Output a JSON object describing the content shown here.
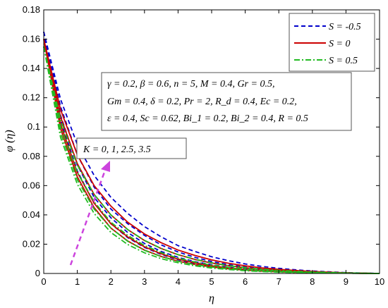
{
  "chart_data": {
    "type": "line",
    "xlabel": "η",
    "ylabel": "φ (η)",
    "xlim": [
      0,
      10
    ],
    "ylim": [
      0,
      0.18
    ],
    "xticks": [
      "0",
      "1",
      "2",
      "3",
      "4",
      "5",
      "6",
      "7",
      "8",
      "9",
      "10"
    ],
    "yticks": [
      "0",
      "0.02",
      "0.04",
      "0.06",
      "0.08",
      "0.1",
      "0.12",
      "0.14",
      "0.16",
      "0.18"
    ],
    "legend_position": "top-right",
    "legend": [
      {
        "label": "S = -0.5",
        "color": "#0000cc",
        "style": "dashed"
      },
      {
        "label": "S = 0",
        "color": "#cc0000",
        "style": "solid"
      },
      {
        "label": "S = 0.5",
        "color": "#22bb22",
        "style": "dashdot"
      }
    ],
    "parameters_text": [
      "γ = 0.2, β = 0.6, n = 5, M = 0.4, Gr = 0.5,",
      "Gm = 0.4, δ = 0.2, Pr = 2, R_d = 0.4, Ec = 0.2,",
      "ε = 0.4, Sc = 0.62, Bi_1 = 0.2, Bi_2 = 0.4, R = 0.5"
    ],
    "k_label": "K = 0, 1, 2.5, 3.5",
    "k_values": [
      0,
      1,
      2.5,
      3.5
    ],
    "x": [
      0,
      0.5,
      1,
      1.5,
      2,
      2.5,
      3,
      3.5,
      4,
      4.5,
      5,
      5.5,
      6,
      6.5,
      7,
      7.5,
      8,
      8.5,
      9,
      9.5,
      10
    ],
    "series": [
      {
        "style": "dashed",
        "color": "#0000cc",
        "k": 0,
        "values": [
          0.165,
          0.119,
          0.088,
          0.067,
          0.052,
          0.041,
          0.032,
          0.025,
          0.019,
          0.015,
          0.0114,
          0.0087,
          0.0065,
          0.0048,
          0.0035,
          0.0025,
          0.0017,
          0.0011,
          0.0006,
          0.0003,
          0.0
        ]
      },
      {
        "style": "dashed",
        "color": "#0000cc",
        "k": 1,
        "values": [
          0.165,
          0.114,
          0.081,
          0.059,
          0.044,
          0.034,
          0.026,
          0.0195,
          0.0147,
          0.011,
          0.0082,
          0.006,
          0.0044,
          0.0032,
          0.0023,
          0.0016,
          0.0011,
          0.0007,
          0.0004,
          0.0002,
          0.0
        ]
      },
      {
        "style": "dashed",
        "color": "#0000cc",
        "k": 2.5,
        "values": [
          0.165,
          0.108,
          0.074,
          0.052,
          0.038,
          0.028,
          0.0205,
          0.015,
          0.011,
          0.0081,
          0.0059,
          0.0043,
          0.0031,
          0.0022,
          0.0016,
          0.0011,
          0.0007,
          0.0005,
          0.0003,
          0.0001,
          0.0
        ]
      },
      {
        "style": "dashed",
        "color": "#0000cc",
        "k": 3.5,
        "values": [
          0.165,
          0.105,
          0.07,
          0.048,
          0.034,
          0.0245,
          0.0178,
          0.013,
          0.0094,
          0.0068,
          0.0049,
          0.0035,
          0.0025,
          0.0018,
          0.0013,
          0.0009,
          0.0006,
          0.0004,
          0.0002,
          0.0001,
          0.0
        ]
      },
      {
        "style": "solid",
        "color": "#cc0000",
        "k": 0,
        "values": [
          0.16,
          0.112,
          0.081,
          0.06,
          0.046,
          0.035,
          0.027,
          0.021,
          0.016,
          0.0123,
          0.0093,
          0.007,
          0.0052,
          0.0038,
          0.0028,
          0.002,
          0.0014,
          0.0009,
          0.0005,
          0.0002,
          0.0
        ]
      },
      {
        "style": "solid",
        "color": "#cc0000",
        "k": 1,
        "values": [
          0.16,
          0.107,
          0.075,
          0.054,
          0.04,
          0.03,
          0.0225,
          0.017,
          0.0128,
          0.0096,
          0.0071,
          0.0053,
          0.0039,
          0.0028,
          0.002,
          0.0014,
          0.001,
          0.0006,
          0.0004,
          0.0002,
          0.0
        ]
      },
      {
        "style": "solid",
        "color": "#cc0000",
        "k": 2.5,
        "values": [
          0.16,
          0.102,
          0.069,
          0.048,
          0.034,
          0.025,
          0.0182,
          0.0134,
          0.0098,
          0.0072,
          0.0052,
          0.0038,
          0.0027,
          0.0019,
          0.0014,
          0.001,
          0.0007,
          0.0004,
          0.0003,
          0.0001,
          0.0
        ]
      },
      {
        "style": "solid",
        "color": "#cc0000",
        "k": 3.5,
        "values": [
          0.16,
          0.099,
          0.066,
          0.045,
          0.031,
          0.0222,
          0.016,
          0.0116,
          0.0084,
          0.0061,
          0.0044,
          0.0032,
          0.0023,
          0.0016,
          0.0011,
          0.0008,
          0.0005,
          0.0003,
          0.0002,
          0.0001,
          0.0
        ]
      },
      {
        "style": "dashdot",
        "color": "#22bb22",
        "k": 0,
        "values": [
          0.155,
          0.105,
          0.074,
          0.054,
          0.04,
          0.03,
          0.0226,
          0.0171,
          0.0129,
          0.0097,
          0.0073,
          0.0054,
          0.004,
          0.0029,
          0.0021,
          0.0015,
          0.001,
          0.0007,
          0.0004,
          0.0002,
          0.0
        ]
      },
      {
        "style": "dashdot",
        "color": "#22bb22",
        "k": 1,
        "values": [
          0.155,
          0.1,
          0.069,
          0.049,
          0.035,
          0.026,
          0.0191,
          0.0142,
          0.0105,
          0.0078,
          0.0057,
          0.0042,
          0.0031,
          0.0022,
          0.0016,
          0.0011,
          0.0008,
          0.0005,
          0.0003,
          0.0001,
          0.0
        ]
      },
      {
        "style": "dashdot",
        "color": "#22bb22",
        "k": 2.5,
        "values": [
          0.155,
          0.096,
          0.064,
          0.044,
          0.031,
          0.022,
          0.0158,
          0.0115,
          0.0083,
          0.006,
          0.0044,
          0.0032,
          0.0023,
          0.0016,
          0.0011,
          0.0008,
          0.0005,
          0.0003,
          0.0002,
          0.0001,
          0.0
        ]
      },
      {
        "style": "dashdot",
        "color": "#22bb22",
        "k": 3.5,
        "values": [
          0.155,
          0.093,
          0.061,
          0.041,
          0.028,
          0.0198,
          0.0141,
          0.0101,
          0.0073,
          0.0052,
          0.0037,
          0.0027,
          0.0019,
          0.0013,
          0.0009,
          0.0006,
          0.0004,
          0.0003,
          0.0002,
          0.0001,
          0.0
        ]
      }
    ],
    "arrow_color": "#cc44dd"
  }
}
